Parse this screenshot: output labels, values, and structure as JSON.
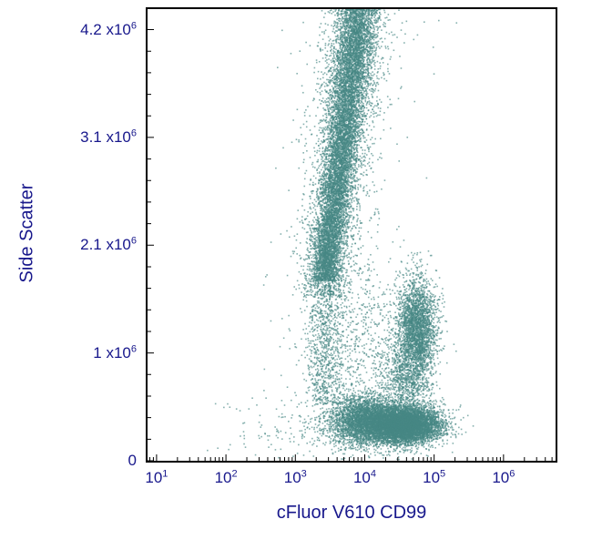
{
  "chart_data": {
    "type": "scatter",
    "title": "",
    "xlabel": "cFluor V610 CD99",
    "ylabel": "Side Scatter",
    "x_scale": "log",
    "x_log_min": 0.87,
    "x_log_max": 6.75,
    "y_min": 0,
    "y_max": 4400000,
    "grid": false,
    "legend": false,
    "point_color": "#478784",
    "point_alpha": 0.65,
    "point_size": 1.6,
    "axis_text_color": "#18188c",
    "axis_line_color": "#000000",
    "seed": 1337,
    "x_ticks": [
      {
        "value": 10,
        "base": "10",
        "exp": "1"
      },
      {
        "value": 100,
        "base": "10",
        "exp": "2"
      },
      {
        "value": 1000,
        "base": "10",
        "exp": "3"
      },
      {
        "value": 10000,
        "base": "10",
        "exp": "4"
      },
      {
        "value": 100000,
        "base": "10",
        "exp": "5"
      },
      {
        "value": 1000000,
        "base": "10",
        "exp": "6"
      }
    ],
    "y_ticks": [
      {
        "value": 0,
        "base": "0",
        "exp": ""
      },
      {
        "value": 1050000,
        "base": "1 x10",
        "exp": "6"
      },
      {
        "value": 2100000,
        "base": "2.1 x10",
        "exp": "6"
      },
      {
        "value": 3150000,
        "base": "3.1 x10",
        "exp": "6"
      },
      {
        "value": 4200000,
        "base": "4.2 x10",
        "exp": "6"
      }
    ],
    "y_minor_step": 210000,
    "populations": [
      {
        "name": "granulocyte-band-core",
        "type": "band",
        "count": 9000,
        "y0": 1750000,
        "y1": 4600000,
        "x_log_mean0": 3.42,
        "x_log_mean1": 3.95,
        "x_log_sd0": 0.1,
        "x_log_sd1": 0.15
      },
      {
        "name": "granulocyte-band-halo",
        "type": "band",
        "count": 2400,
        "y0": 1600000,
        "y1": 4600000,
        "x_log_mean0": 3.42,
        "x_log_mean1": 3.95,
        "x_log_sd0": 0.2,
        "x_log_sd1": 0.28
      },
      {
        "name": "granulocyte-band-outliers",
        "type": "band",
        "count": 260,
        "y0": 1600000,
        "y1": 4600000,
        "x_log_mean0": 3.45,
        "x_log_mean1": 3.95,
        "x_log_sd0": 0.45,
        "x_log_sd1": 0.5
      },
      {
        "name": "band-lower-tail",
        "type": "band",
        "count": 850,
        "y0": 550000,
        "y1": 1800000,
        "x_log_mean0": 3.4,
        "x_log_mean1": 3.44,
        "x_log_sd0": 0.12,
        "x_log_sd1": 0.14
      },
      {
        "name": "mid-diffuse-scatter",
        "type": "gauss",
        "count": 900,
        "x_log_mean": 3.95,
        "x_log_sd": 0.45,
        "y_mean": 1100000,
        "y_sd": 520000
      },
      {
        "name": "cd99-high-blob",
        "type": "gauss",
        "count": 2600,
        "x_log_mean": 4.75,
        "x_log_sd": 0.14,
        "y_mean": 1300000,
        "y_sd": 240000
      },
      {
        "name": "blob-bridge",
        "type": "gauss",
        "count": 900,
        "x_log_mean": 4.6,
        "x_log_sd": 0.18,
        "y_mean": 800000,
        "y_sd": 210000
      },
      {
        "name": "bottom-cluster-core",
        "type": "gauss",
        "count": 7000,
        "x_log_mean": 4.55,
        "x_log_sd": 0.27,
        "y_mean": 350000,
        "y_sd": 90000
      },
      {
        "name": "bottom-cluster-left",
        "type": "gauss",
        "count": 3200,
        "x_log_mean": 4.0,
        "x_log_sd": 0.26,
        "y_mean": 390000,
        "y_sd": 125000
      },
      {
        "name": "debris-left",
        "type": "gauss",
        "count": 130,
        "x_log_mean": 2.95,
        "x_log_sd": 0.55,
        "y_mean": 330000,
        "y_sd": 170000
      }
    ]
  }
}
